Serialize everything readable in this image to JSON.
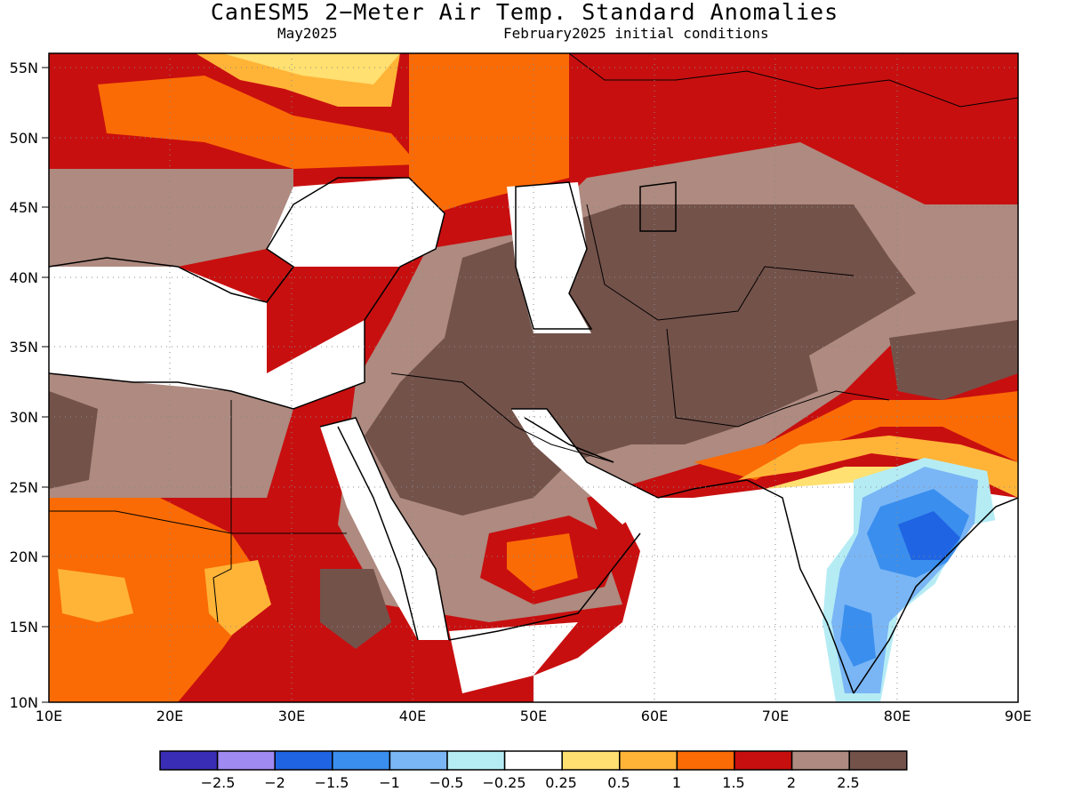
{
  "title": "CanESM5 2−Meter Air Temp. Standard Anomalies",
  "subtitle_left": "May2025",
  "subtitle_right": "February2025 initial conditions",
  "lat_ticks": [
    "55N",
    "50N",
    "45N",
    "40N",
    "35N",
    "30N",
    "25N",
    "20N",
    "15N",
    "10N"
  ],
  "lon_ticks": [
    "10E",
    "20E",
    "30E",
    "40E",
    "50E",
    "60E",
    "70E",
    "80E",
    "90E"
  ],
  "map_extent": {
    "lon": [
      10,
      90
    ],
    "lat": [
      10,
      56.5
    ]
  },
  "grid": true,
  "colorbar": {
    "colors": [
      "#3a2db5",
      "#9f8af2",
      "#1f64e3",
      "#3a8eee",
      "#7ab6f5",
      "#b5ecf4",
      "#ffffff",
      "#ffe070",
      "#ffb437",
      "#fa6b05",
      "#c80f0f",
      "#ae8a80",
      "#73524a"
    ],
    "labels": [
      "−2.5",
      "−2",
      "−1.5",
      "−1",
      "−0.5",
      "−0.25",
      "0.25",
      "0.5",
      "1",
      "1.5",
      "2",
      "2.5"
    ]
  },
  "legend_placement": "bottom"
}
